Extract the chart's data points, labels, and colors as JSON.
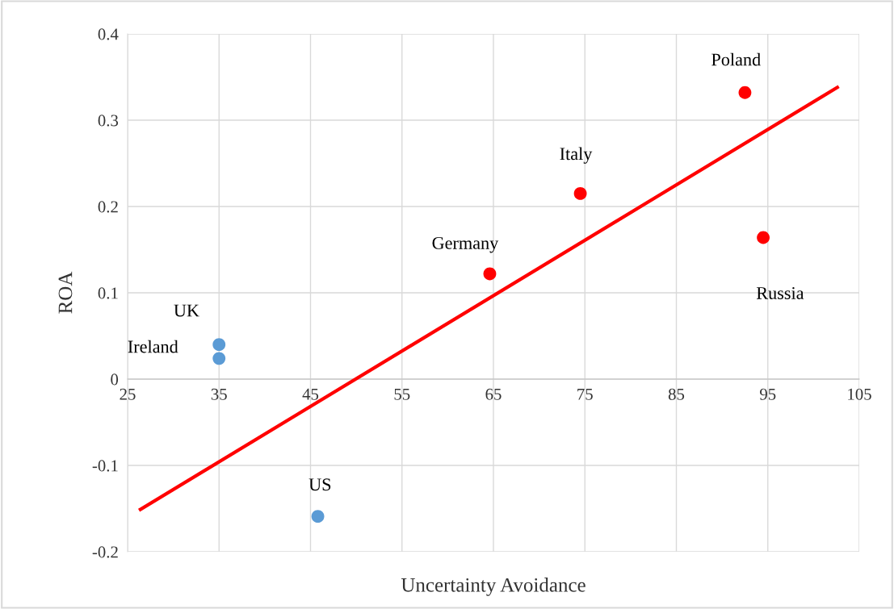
{
  "chart_data": {
    "type": "scatter",
    "xlabel": "Uncertainty Avoidance",
    "ylabel": "ROA",
    "xlim": [
      25,
      105
    ],
    "xticks": [
      25,
      35,
      45,
      55,
      65,
      75,
      85,
      95,
      105
    ],
    "ylim": [
      -0.2,
      0.4
    ],
    "yticks": [
      -0.2,
      -0.1,
      0,
      0.1,
      0.2,
      0.3,
      0.4
    ],
    "grid": true,
    "series": [
      {
        "marker": "circle",
        "color": "#5b9bd5",
        "x": [
          35,
          35,
          45.8
        ],
        "values": [
          0.04,
          0.024,
          -0.159
        ]
      },
      {
        "marker": "circle",
        "color": "#ff0000",
        "x": [
          64.6,
          74.5,
          92.5,
          94.5
        ],
        "values": [
          0.122,
          0.215,
          0.332,
          0.164
        ]
      },
      {
        "type": "line",
        "marker": "none",
        "color": "#ff0000",
        "x": [
          26.4,
          102.6
        ],
        "values": [
          -0.151,
          0.338
        ]
      }
    ],
    "annotations": [
      {
        "text": "UK",
        "x": 35,
        "y": 0.04
      },
      {
        "text": "Ireland",
        "x": 35,
        "y": 0.024
      },
      {
        "text": "US",
        "x": 45.8,
        "y": -0.159
      },
      {
        "text": "Germany",
        "x": 64.6,
        "y": 0.122
      },
      {
        "text": "Italy",
        "x": 74.5,
        "y": 0.215
      },
      {
        "text": "Poland",
        "x": 92.5,
        "y": 0.332
      },
      {
        "text": "Russia",
        "x": 94.5,
        "y": 0.164
      }
    ]
  }
}
